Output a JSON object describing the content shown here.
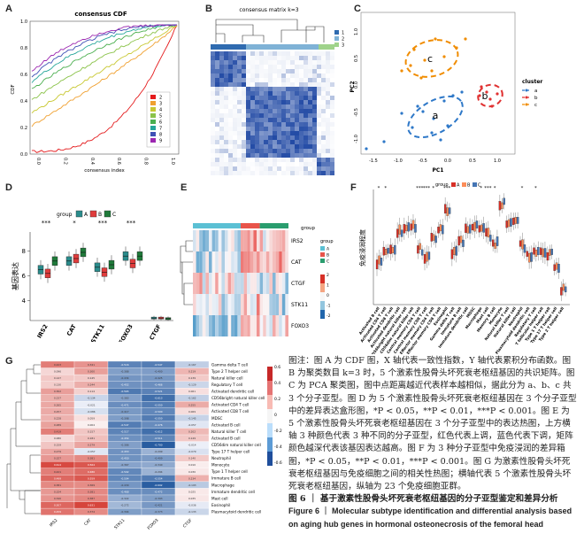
{
  "figure": {
    "panels": {
      "A": {
        "label": "A",
        "title": "consensus CDF",
        "xlabel": "consensus index",
        "ylabel": "CDF",
        "y_ticks": [
          "0.0",
          "0.2",
          "0.4",
          "0.6",
          "0.8",
          "1.0"
        ],
        "x_ticks": [
          "0.0",
          "0.2",
          "0.4",
          "0.6",
          "0.8",
          "1.0"
        ],
        "legend": [
          "2",
          "3",
          "4",
          "5",
          "6",
          "7",
          "8",
          "9"
        ],
        "colors": [
          "#e41a1c",
          "#f0a030",
          "#c8c832",
          "#8bc34a",
          "#4caf50",
          "#26a69a",
          "#3f51b5",
          "#9c27b0"
        ]
      },
      "B": {
        "label": "B",
        "title": "consensus matrix k=3",
        "legend": [
          "1",
          "2",
          "3"
        ],
        "colors": [
          "#2f6bb0",
          "#7fb2d6",
          "#9fd38b"
        ]
      },
      "C": {
        "label": "C",
        "xlabel": "PC1",
        "ylabel": "PC2",
        "x_ticks": [
          "-1.5",
          "-1.0",
          "-0.5",
          "0.0",
          "0.5",
          "1.0"
        ],
        "y_ticks": [
          "-1.0",
          "-0.5",
          "0.0",
          "0.5",
          "1.0"
        ],
        "legend_title": "cluster",
        "legend": [
          "a",
          "b",
          "c"
        ],
        "cluster_labels": [
          "a",
          "b",
          "c"
        ],
        "colors": [
          "#2e78c8",
          "#e03131",
          "#f08c00"
        ]
      },
      "D": {
        "label": "D",
        "legend_title": "group",
        "legend": [
          "A",
          "B",
          "C"
        ],
        "ylabel": "基因表达",
        "y_ticks": [
          "4",
          "6",
          "8"
        ],
        "genes": [
          "IRS2",
          "CAT",
          "STK11",
          "FOXO3",
          "CTGF"
        ],
        "significance": [
          "***",
          "*",
          "***",
          "***",
          ""
        ],
        "colors": [
          "#2a8c8c",
          "#e03c3c",
          "#1f7a3a"
        ]
      },
      "E": {
        "label": "E",
        "row_labels": [
          "IRS2",
          "CAT",
          "CTGF",
          "STK11",
          "FOXO3"
        ],
        "annotation_label": "group",
        "legend_title": "group",
        "legend": [
          "A",
          "B",
          "C"
        ],
        "scale_ticks": [
          "2",
          "1",
          "0",
          "-1",
          "-2"
        ],
        "colors": [
          "#5bc0d4",
          "#e8544a",
          "#2a9d6e"
        ]
      },
      "F": {
        "label": "F",
        "legend_title": "group",
        "legend": [
          "A",
          "B",
          "C"
        ],
        "ylabel": "免疫浸润程度",
        "significance": [
          "*",
          "*",
          "***",
          "***",
          "*",
          "***",
          "*",
          "***",
          "*",
          "*",
          "*"
        ],
        "cell_types": [
          "Activated B cell",
          "Activated CD4 T cell",
          "Activated CD8 T cell",
          "Activated dendritic cell",
          "CD56bright natural killer cell",
          "CD56dim natural killer cell",
          "Central memory CD4 T cell",
          "Central memory CD8 T cell",
          "Effector memory CD4 T cell",
          "Effector memory CD8 T cell",
          "Eosinophil",
          "Gamma delta T cell",
          "Immature B cell",
          "Immature dendritic cell",
          "MDSC",
          "Macrophage",
          "Mast cell",
          "Memory B cell",
          "Monocyte",
          "Natural killer T cell",
          "Natural killer cell",
          "Neutrophil",
          "Plasmacytoid dendritic cell",
          "Regulatory T cell",
          "T follicular helper cell",
          "Type 1 T helper cell",
          "Type 17 T helper cell",
          "Type 2 T helper cell"
        ],
        "colors": [
          "#d73027",
          "#fc8d59",
          "#4575b4"
        ]
      },
      "G": {
        "label": "G",
        "columns": [
          "IRS2",
          "CAT",
          "STK11",
          "FOXO3",
          "CTGF"
        ],
        "rows": [
          "Gamma delta T cell",
          "Type 2 T helper cell",
          "Natural killer cell",
          "Regulatory T cell",
          "Activated dendritic cell",
          "CD56bright natural killer cell",
          "Activated CD4 T cell",
          "Activated CD8 T cell",
          "MDSC",
          "Activated B cell",
          "Natural killer T cell",
          "Activated B cell",
          "CD56dim natural killer cell",
          "Type 17 T helper cell",
          "Neutrophil",
          "Monocyte",
          "Type 1 T helper cell",
          "Immature B cell",
          "Macrophage",
          "Immature dendritic cell",
          "Mast cell",
          "Eosinophil",
          "Plasmacytoid dendritic cell"
        ],
        "scale_ticks": [
          "0.6",
          "0.4",
          "0.2",
          "0",
          "-0.2",
          "-0.4",
          "-0.6"
        ]
      }
    },
    "caption": {
      "zh_1": "图注：图 A 为 CDF 图，X 轴代表一致性指数，Y 轴代表累积分布函数。图 B 为聚类数目 k=3 时，5 个激素性股骨头坏死衰老枢纽基因的共识矩阵。图 C 为 PCA 聚类图，图中点距离越近代表样本越相似，据此分为 a、b、c 共 3 个分子亚型。图 D 为 5 个激素性股骨头坏死衰老枢纽基因在 3 个分子亚型中的差异表达盒形图，",
      "zh_p1": "*P < 0.05，**P < 0.01，***P < 0.001。",
      "zh_2": "图 E 为 5 个激素性股骨头坏死衰老枢纽基因在 3 个分子亚型中的表达热图，上方横轴 3 种颜色代表 3 种不同的分子亚型，红色代表上调，蓝色代表下调，矩阵颜色越深代表该基因表达越高。图 F 为 3 种分子亚型中免疫浸润的差异箱图，",
      "zh_p2": "*P < 0.05，**P < 0.01，***P < 0.001。",
      "zh_3": "图 G 为激素性股骨头坏死衰老枢纽基因与免疫细胞之间的相关性热图；横轴代表 5 个激素性股骨头坏死衰老枢纽基因，纵轴为 23 个免疫细胞亚群。",
      "title_zh": "图 6 ｜ 基于激素性股骨头坏死衰老枢纽基因的分子亚型鉴定和差异分析",
      "title_en": "Figure 6 ｜ Molecular subtype identification and differential analysis based on aging hub genes in hormonal osteonecrosis of the femoral head"
    }
  }
}
